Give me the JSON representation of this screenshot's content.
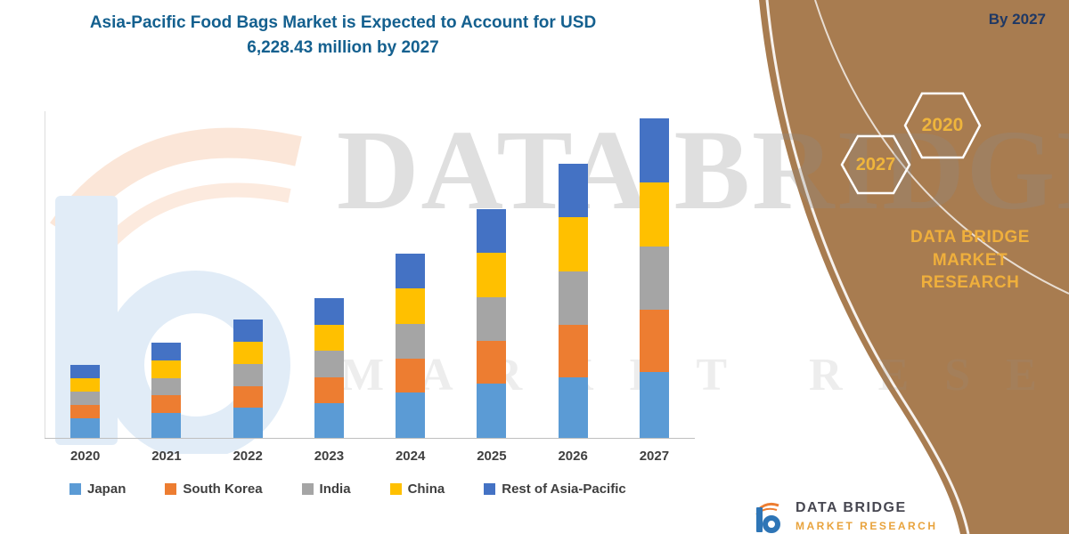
{
  "title": {
    "line1": "Asia-Pacific Food Bags Market is Expected to Account for USD",
    "line2": "6,228.43 million by 2027"
  },
  "right_panel": {
    "by_year": "By 2027",
    "hexagons": [
      {
        "label": "2027"
      },
      {
        "label": "2020"
      }
    ],
    "brand_line1": "DATA BRIDGE MARKET",
    "brand_line2": "RESEARCH",
    "colors": {
      "panel": "#A87C50",
      "gold": "#EFAF3C",
      "navy": "#1F3864"
    }
  },
  "watermark": {
    "line1": "DATA BRIDGE",
    "line2": "MARKET RESEARCH"
  },
  "footer": {
    "brand": "DATA BRIDGE",
    "sub": "MARKET RESEARCH"
  },
  "chart_data": {
    "type": "bar",
    "stacked": true,
    "title": "Asia-Pacific Food Bags Market is Expected to Account for USD 6,228.43 million by 2027",
    "units": "USD million",
    "categories": [
      "2020",
      "2021",
      "2022",
      "2023",
      "2024",
      "2025",
      "2026",
      "2027"
    ],
    "series": [
      {
        "name": "Japan",
        "color": "#5B9BD5",
        "values": [
          400,
          500,
          600,
          700,
          900,
          1080,
          1200,
          1300
        ]
      },
      {
        "name": "South Korea",
        "color": "#ED7D31",
        "values": [
          260,
          340,
          420,
          500,
          660,
          830,
          1020,
          1210
        ]
      },
      {
        "name": "India",
        "color": "#A5A5A5",
        "values": [
          260,
          345,
          430,
          510,
          680,
          850,
          1040,
          1230
        ]
      },
      {
        "name": "China",
        "color": "#FFC000",
        "values": [
          260,
          345,
          430,
          510,
          680,
          850,
          1045,
          1244
        ]
      },
      {
        "name": "Rest of Asia-Pacific",
        "color": "#4472C4",
        "values": [
          260,
          345,
          430,
          505,
          680,
          850,
          1045,
          1244.43
        ]
      }
    ],
    "totals": [
      1440,
      1875,
      2310,
      2725,
      3600,
      4460,
      5350,
      6228.43
    ],
    "ylim": [
      0,
      6500
    ],
    "grid": false,
    "legend_position": "bottom",
    "xlabel": "",
    "ylabel": ""
  }
}
